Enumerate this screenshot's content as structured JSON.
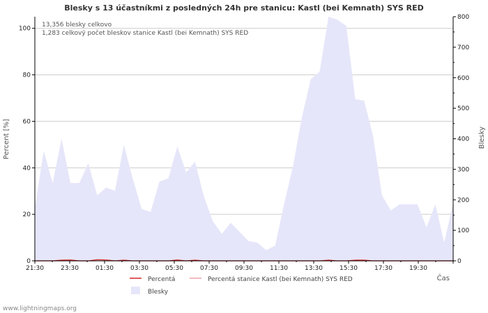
{
  "chart_data": {
    "type": "area",
    "title": "Blesky s 13 účastníkmi z posledných 24h pre stanicu: Kastl (bei Kemnath) SYS RED",
    "xlabel": "Čas",
    "ylabel_left": "Percent   [%]",
    "ylabel_right": "Blesky",
    "ylim_left": [
      0,
      105
    ],
    "ylim_right": [
      0,
      800
    ],
    "yticks_left": [
      0,
      20,
      40,
      60,
      80,
      100
    ],
    "yticks_right": [
      0,
      100,
      200,
      300,
      400,
      500,
      600,
      700,
      800
    ],
    "xtick_labels": [
      "21:30",
      "23:30",
      "01:30",
      "03:30",
      "05:30",
      "07:30",
      "09:30",
      "11:30",
      "13:30",
      "15:30",
      "17:30",
      "19:30"
    ],
    "annotations": [
      "13,356 blesky celkovo",
      "1,283 celkový počet bleskov stanice Kastl (bei Kemnath) SYS RED"
    ],
    "legend": {
      "placement": "bottom",
      "entries": [
        {
          "label": "Percentá",
          "color": "#d62728"
        },
        {
          "label": "Percentá stanice Kastl (bei Kemnath) SYS RED",
          "color": "#f2a0a8"
        },
        {
          "label": "Blesky",
          "color": "#e6e6fa"
        }
      ]
    },
    "series": [
      {
        "name": "Blesky",
        "axis": "right",
        "color": "#e6e6fa",
        "values": [
          175,
          360,
          255,
          400,
          255,
          255,
          320,
          215,
          240,
          230,
          380,
          270,
          170,
          160,
          260,
          270,
          375,
          290,
          325,
          210,
          130,
          88,
          125,
          95,
          65,
          60,
          35,
          50,
          185,
          310,
          470,
          595,
          620,
          800,
          790,
          770,
          530,
          525,
          410,
          215,
          165,
          185,
          185,
          185,
          110,
          185,
          60,
          190
        ]
      },
      {
        "name": "Percentá",
        "axis": "left",
        "color": "#d62728",
        "values": [
          0,
          0,
          0,
          0.3,
          0.4,
          0,
          0,
          0.5,
          0.4,
          0,
          0.3,
          0,
          0,
          0,
          0,
          0,
          0.4,
          0,
          0.3,
          0,
          0,
          0,
          0,
          0,
          0,
          0,
          0,
          0,
          0,
          0,
          0,
          0,
          0,
          0.3,
          0,
          0,
          0.3,
          0.3,
          0,
          0,
          0,
          0,
          0,
          0,
          0,
          0,
          0,
          0
        ]
      },
      {
        "name": "Percentá stanice Kastl (bei Kemnath) SYS RED",
        "axis": "left",
        "color": "#f2a0a8",
        "values": [
          0,
          0,
          0,
          0,
          0,
          0,
          0,
          0,
          0,
          0,
          0,
          0,
          0,
          0,
          0,
          0,
          0,
          0,
          0,
          0,
          0,
          0,
          0,
          0,
          0,
          0,
          0,
          0,
          0,
          0,
          0,
          0,
          0,
          0,
          0,
          0,
          0,
          0,
          0,
          0,
          0,
          0,
          0,
          0,
          0,
          0,
          0,
          0
        ]
      }
    ]
  },
  "footer": "www.lightningmaps.org",
  "colors": {
    "grid": "#cccccc",
    "area": "#e6e6fa",
    "axis": "#000000"
  }
}
